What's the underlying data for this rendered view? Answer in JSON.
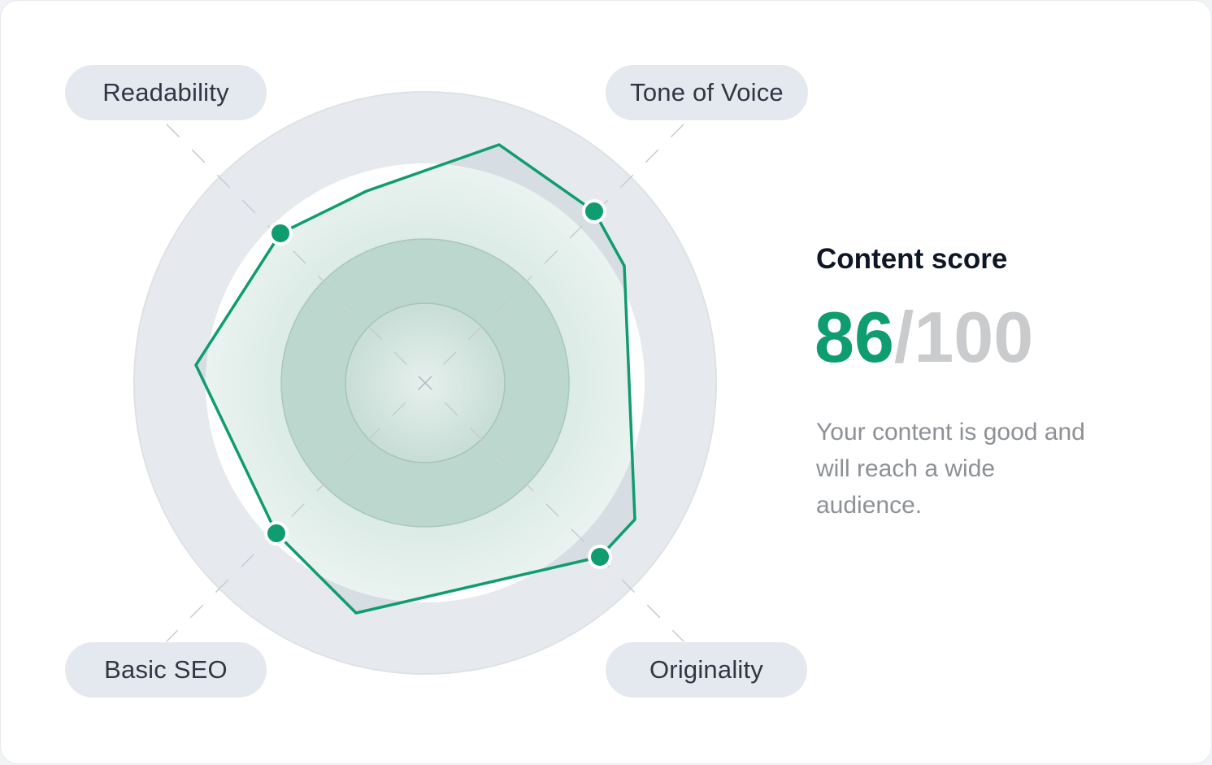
{
  "labels": {
    "readability": "Readability",
    "tone_of_voice": "Tone of Voice",
    "basic_seo": "Basic SEO",
    "originality": "Originality"
  },
  "score": {
    "title": "Content score",
    "value": "86",
    "max": "/100",
    "description": "Your content is good and will reach a wide audience."
  },
  "colors": {
    "accent": "#0f9c6e",
    "pill_background": "#e4e9ef",
    "score_max": "#c9cbcd",
    "description": "#8d9196"
  }
}
